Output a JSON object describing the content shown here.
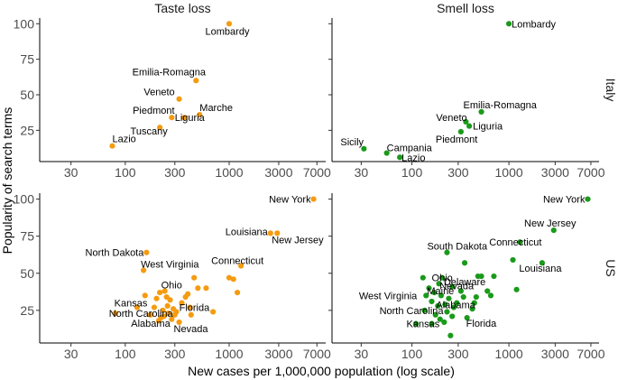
{
  "chart_data": {
    "type": "scatter",
    "x_scale": "log",
    "xlabel": "New cases per 1,000,000 population (log scale)",
    "ylabel": "Popularity of search terms",
    "x_ticks": [
      30,
      100,
      300,
      1000,
      3000,
      7000
    ],
    "x_tick_labels": [
      "30",
      "100",
      "300",
      "1000",
      "3000",
      "7000"
    ],
    "xlim": [
      15,
      8500
    ],
    "y_ticks_top": [
      25,
      50,
      75,
      100
    ],
    "ylim_top": [
      3,
      104
    ],
    "y_ticks_bottom": [
      25,
      50,
      75,
      100
    ],
    "ylim_bottom": [
      3,
      104
    ],
    "column_strips": [
      "Taste loss",
      "Smell loss"
    ],
    "row_strips": [
      "Italy",
      "US"
    ],
    "colors": {
      "Taste loss": "#f59b10",
      "Smell loss": "#1a9a1a"
    },
    "panels": [
      {
        "row": "Italy",
        "column": "Taste loss",
        "points": [
          {
            "x": 1000,
            "y": 100,
            "label": "Lombardy"
          },
          {
            "x": 480,
            "y": 60,
            "label": "Emilia-Romagna"
          },
          {
            "x": 330,
            "y": 47,
            "label": "Veneto"
          },
          {
            "x": 520,
            "y": 36,
            "label": "Marche"
          },
          {
            "x": 280,
            "y": 34,
            "label": "Piedmont"
          },
          {
            "x": 370,
            "y": 34,
            "label": "Liguria"
          },
          {
            "x": 215,
            "y": 27,
            "label": "Tuscany"
          },
          {
            "x": 75,
            "y": 14,
            "label": "Lazio"
          }
        ]
      },
      {
        "row": "Italy",
        "column": "Smell loss",
        "points": [
          {
            "x": 1000,
            "y": 100,
            "label": "Lombardy"
          },
          {
            "x": 520,
            "y": 38,
            "label": "Emilia-Romagna"
          },
          {
            "x": 360,
            "y": 31,
            "label": "Veneto"
          },
          {
            "x": 390,
            "y": 28,
            "label": "Liguria"
          },
          {
            "x": 320,
            "y": 24,
            "label": "Piedmont"
          },
          {
            "x": 32,
            "y": 12,
            "label": "Sicily"
          },
          {
            "x": 55,
            "y": 9,
            "label": "Campania"
          },
          {
            "x": 75,
            "y": 6,
            "label": "Lazio"
          }
        ]
      },
      {
        "row": "US",
        "column": "Taste loss",
        "points": [
          {
            "x": 6500,
            "y": 100,
            "label": "New York"
          },
          {
            "x": 2500,
            "y": 77,
            "label": "Louisiana"
          },
          {
            "x": 2900,
            "y": 77,
            "label": "New Jersey"
          },
          {
            "x": 160,
            "y": 64,
            "label": "North Dakota"
          },
          {
            "x": 150,
            "y": 52,
            "label": "West Virginia"
          },
          {
            "x": 1300,
            "y": 55,
            "label": "Connecticut"
          },
          {
            "x": 240,
            "y": 38,
            "label": "Ohio"
          },
          {
            "x": 420,
            "y": 27,
            "label": "Florida"
          },
          {
            "x": 130,
            "y": 27,
            "label": "Kansas"
          },
          {
            "x": 80,
            "y": 23,
            "label": "North Carolina"
          },
          {
            "x": 220,
            "y": 20,
            "label": "Alabama"
          },
          {
            "x": 330,
            "y": 17,
            "label": "Nevada"
          },
          {
            "x": 155,
            "y": 35
          },
          {
            "x": 175,
            "y": 22
          },
          {
            "x": 190,
            "y": 27
          },
          {
            "x": 200,
            "y": 33
          },
          {
            "x": 210,
            "y": 18
          },
          {
            "x": 215,
            "y": 37
          },
          {
            "x": 230,
            "y": 25
          },
          {
            "x": 235,
            "y": 21
          },
          {
            "x": 250,
            "y": 34
          },
          {
            "x": 255,
            "y": 28
          },
          {
            "x": 260,
            "y": 23
          },
          {
            "x": 270,
            "y": 32
          },
          {
            "x": 280,
            "y": 19
          },
          {
            "x": 290,
            "y": 26
          },
          {
            "x": 300,
            "y": 22
          },
          {
            "x": 310,
            "y": 24
          },
          {
            "x": 350,
            "y": 30
          },
          {
            "x": 380,
            "y": 34
          },
          {
            "x": 400,
            "y": 36
          },
          {
            "x": 430,
            "y": 22
          },
          {
            "x": 460,
            "y": 47
          },
          {
            "x": 500,
            "y": 40
          },
          {
            "x": 600,
            "y": 40
          },
          {
            "x": 700,
            "y": 24
          },
          {
            "x": 1000,
            "y": 47
          },
          {
            "x": 1200,
            "y": 37
          },
          {
            "x": 1100,
            "y": 46
          }
        ]
      },
      {
        "row": "US",
        "column": "Smell loss",
        "points": [
          {
            "x": 6500,
            "y": 100,
            "label": "New York"
          },
          {
            "x": 2900,
            "y": 79,
            "label": "New Jersey"
          },
          {
            "x": 1300,
            "y": 71,
            "label": "Connecticut"
          },
          {
            "x": 2200,
            "y": 57,
            "label": "Louisiana"
          },
          {
            "x": 230,
            "y": 64,
            "label": "South Dakota"
          },
          {
            "x": 480,
            "y": 48,
            "label": "Delaware"
          },
          {
            "x": 190,
            "y": 43,
            "label": "Ohio"
          },
          {
            "x": 260,
            "y": 41,
            "label": "Nevada"
          },
          {
            "x": 170,
            "y": 37,
            "label": "Maine"
          },
          {
            "x": 140,
            "y": 35,
            "label": "West Virginia"
          },
          {
            "x": 220,
            "y": 29,
            "label": "Alabama"
          },
          {
            "x": 135,
            "y": 25,
            "label": "North Carolina"
          },
          {
            "x": 370,
            "y": 20,
            "label": "Florida"
          },
          {
            "x": 160,
            "y": 16,
            "label": "Kansas"
          },
          {
            "x": 130,
            "y": 47
          },
          {
            "x": 150,
            "y": 40
          },
          {
            "x": 160,
            "y": 31
          },
          {
            "x": 175,
            "y": 22
          },
          {
            "x": 185,
            "y": 28
          },
          {
            "x": 195,
            "y": 19
          },
          {
            "x": 200,
            "y": 35
          },
          {
            "x": 205,
            "y": 47
          },
          {
            "x": 215,
            "y": 17
          },
          {
            "x": 230,
            "y": 24
          },
          {
            "x": 240,
            "y": 33
          },
          {
            "x": 250,
            "y": 8
          },
          {
            "x": 260,
            "y": 21
          },
          {
            "x": 270,
            "y": 27
          },
          {
            "x": 290,
            "y": 30
          },
          {
            "x": 320,
            "y": 38
          },
          {
            "x": 340,
            "y": 34
          },
          {
            "x": 350,
            "y": 57
          },
          {
            "x": 420,
            "y": 26
          },
          {
            "x": 460,
            "y": 34
          },
          {
            "x": 520,
            "y": 48
          },
          {
            "x": 600,
            "y": 38
          },
          {
            "x": 650,
            "y": 35
          },
          {
            "x": 700,
            "y": 48
          },
          {
            "x": 1200,
            "y": 39
          },
          {
            "x": 1100,
            "y": 59
          },
          {
            "x": 110,
            "y": 16
          },
          {
            "x": 440,
            "y": 30
          }
        ]
      }
    ]
  }
}
